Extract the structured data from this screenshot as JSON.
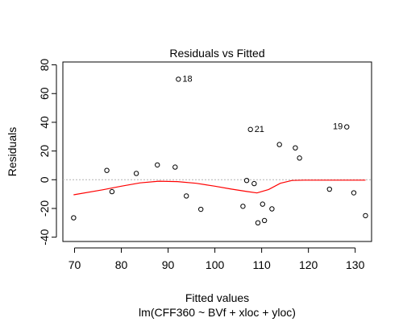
{
  "chart_data": {
    "type": "scatter",
    "title": "Residuals vs Fitted",
    "xlabel": "Fitted values",
    "subtitle": "lm(CFF360 ~ BVf + xloc + yloc)",
    "ylabel": "Residuals",
    "xlim": [
      67.5,
      133.5
    ],
    "ylim": [
      -43,
      82
    ],
    "xticks": [
      "70",
      "80",
      "90",
      "100",
      "110",
      "120",
      "130"
    ],
    "yticks": [
      "-40",
      "-20",
      "0",
      "20",
      "40",
      "60",
      "80"
    ],
    "reference_line": {
      "y": 0,
      "style": "dotted",
      "color": "#b3b3b3"
    },
    "point_color": "#000000",
    "smooth_color": "#ff0000",
    "points": [
      {
        "x": 69.8,
        "y": -26.5
      },
      {
        "x": 76.9,
        "y": 6.5
      },
      {
        "x": 78.0,
        "y": -8.3
      },
      {
        "x": 83.2,
        "y": 4.4
      },
      {
        "x": 87.7,
        "y": 10.3
      },
      {
        "x": 91.5,
        "y": 8.8
      },
      {
        "x": 92.2,
        "y": 70.0,
        "label": "18",
        "label_side": "right"
      },
      {
        "x": 93.9,
        "y": -11.3
      },
      {
        "x": 97.0,
        "y": -20.6
      },
      {
        "x": 106.0,
        "y": -18.5
      },
      {
        "x": 106.8,
        "y": -0.5
      },
      {
        "x": 107.6,
        "y": 35.0,
        "label": "21",
        "label_side": "right"
      },
      {
        "x": 108.4,
        "y": -2.7
      },
      {
        "x": 109.2,
        "y": -30.0
      },
      {
        "x": 110.2,
        "y": -17.0
      },
      {
        "x": 110.6,
        "y": -28.4
      },
      {
        "x": 112.2,
        "y": -20.3
      },
      {
        "x": 113.8,
        "y": 24.5
      },
      {
        "x": 117.2,
        "y": 22.2
      },
      {
        "x": 118.1,
        "y": 15.1
      },
      {
        "x": 124.5,
        "y": -6.6
      },
      {
        "x": 128.2,
        "y": 36.8,
        "label": "19",
        "label_side": "left"
      },
      {
        "x": 129.7,
        "y": -9.1
      },
      {
        "x": 132.2,
        "y": -25.0
      }
    ],
    "smooth": [
      {
        "x": 69.8,
        "y": -10.5
      },
      {
        "x": 76.0,
        "y": -7.0
      },
      {
        "x": 80.0,
        "y": -4.5
      },
      {
        "x": 84.0,
        "y": -2.2
      },
      {
        "x": 88.0,
        "y": -1.0
      },
      {
        "x": 92.0,
        "y": -1.3
      },
      {
        "x": 96.0,
        "y": -2.5
      },
      {
        "x": 100.0,
        "y": -4.5
      },
      {
        "x": 103.5,
        "y": -6.5
      },
      {
        "x": 106.8,
        "y": -8.2
      },
      {
        "x": 109.0,
        "y": -9.2
      },
      {
        "x": 111.5,
        "y": -6.8
      },
      {
        "x": 114.0,
        "y": -2.5
      },
      {
        "x": 116.5,
        "y": -0.5
      },
      {
        "x": 119.0,
        "y": -0.3
      },
      {
        "x": 124.0,
        "y": -0.3
      },
      {
        "x": 129.0,
        "y": -0.3
      },
      {
        "x": 132.2,
        "y": -0.3
      }
    ]
  }
}
